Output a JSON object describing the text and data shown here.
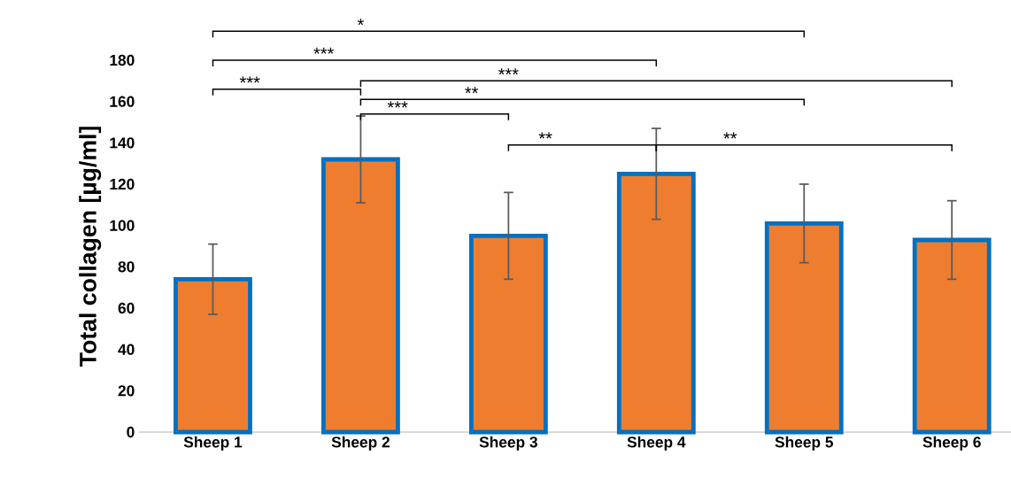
{
  "chart_data": {
    "type": "bar",
    "ylabel": "Total collagen [µg/ml]",
    "categories": [
      "Sheep 1",
      "Sheep 2",
      "Sheep 3",
      "Sheep 4",
      "Sheep 5",
      "Sheep 6"
    ],
    "values": [
      74,
      132,
      95,
      125,
      101,
      93
    ],
    "errors": [
      17,
      21,
      21,
      22,
      19,
      19
    ],
    "color": "#ef7d2f",
    "ylim": [
      0,
      180
    ],
    "yticks": [
      0,
      20,
      40,
      60,
      80,
      100,
      120,
      140,
      160,
      180
    ],
    "annotations": [
      "*",
      "***",
      "***",
      "***",
      "**",
      "***",
      "**",
      "**"
    ]
  }
}
